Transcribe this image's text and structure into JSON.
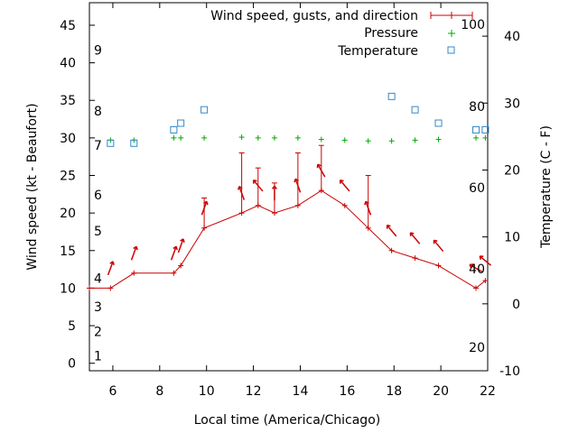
{
  "chart_data": {
    "type": "line",
    "xlabel": "Local time (America/Chicago)",
    "ylabel": "Wind speed (kt - Beaufort)",
    "y2label": "Temperature (C - F)",
    "xlim": [
      5,
      22
    ],
    "ylim": [
      -1,
      48
    ],
    "y2lim": [
      -10,
      45
    ],
    "xticks": [
      "6",
      "8",
      "10",
      "12",
      "14",
      "16",
      "18",
      "20",
      "22"
    ],
    "yticks": [
      "0",
      "5",
      "10",
      "15",
      "20",
      "25",
      "30",
      "35",
      "40",
      "45"
    ],
    "y2ticks": [
      "-10",
      "0",
      "10",
      "20",
      "30",
      "40"
    ],
    "beaufort_labels": [
      {
        "label": "1",
        "y": 1.0
      },
      {
        "label": "2",
        "y": 4.2
      },
      {
        "label": "3",
        "y": 7.5
      },
      {
        "label": "4",
        "y": 11.3
      },
      {
        "label": "5",
        "y": 17.6
      },
      {
        "label": "6",
        "y": 22.4
      },
      {
        "label": "7",
        "y": 29.0
      },
      {
        "label": "8",
        "y": 33.6
      },
      {
        "label": "9",
        "y": 41.7
      }
    ],
    "fahrenheit_labels": [
      {
        "label": "20",
        "y": 2.1
      },
      {
        "label": "40",
        "y": 12.6
      },
      {
        "label": "60",
        "y": 23.4
      },
      {
        "label": "80",
        "y": 34.2
      },
      {
        "label": "100",
        "y": 45.1
      }
    ],
    "series": [
      {
        "name": "Wind speed, gusts, and direction",
        "color": "#cc0000",
        "x": [
          5.0,
          5.9,
          6.9,
          8.6,
          8.9,
          9.9,
          11.5,
          12.2,
          12.9,
          13.9,
          14.9,
          15.9,
          16.9,
          17.9,
          18.9,
          19.9,
          21.5,
          21.9
        ],
        "y": [
          10,
          10,
          12,
          12,
          13,
          18,
          20,
          21,
          20,
          21,
          23,
          21,
          18,
          15,
          14,
          13,
          10,
          11
        ],
        "gusts": [
          null,
          null,
          null,
          null,
          null,
          22,
          28,
          26,
          24,
          28,
          29,
          null,
          25,
          null,
          null,
          null,
          null,
          null
        ],
        "direction_deg": [
          null,
          20,
          20,
          20,
          20,
          20,
          340,
          320,
          0,
          340,
          330,
          320,
          340,
          320,
          320,
          320,
          300,
          310
        ]
      },
      {
        "name": "Pressure",
        "color": "#00aa00",
        "x": [
          5.9,
          6.9,
          8.6,
          8.9,
          9.9,
          11.5,
          12.2,
          12.9,
          13.9,
          14.9,
          15.9,
          16.9,
          17.9,
          18.9,
          19.9,
          21.5,
          21.9
        ],
        "y": [
          29.7,
          29.7,
          30.0,
          30.0,
          30.0,
          30.1,
          30.0,
          30.0,
          30.0,
          29.8,
          29.7,
          29.6,
          29.6,
          29.7,
          29.8,
          30.0,
          30.0
        ]
      },
      {
        "name": "Temperature",
        "color": "#3388cc",
        "x": [
          5.9,
          6.9,
          8.6,
          8.9,
          9.9,
          17.9,
          18.9,
          19.9,
          21.5,
          21.9
        ],
        "y": [
          24,
          24,
          26,
          27,
          29,
          31,
          29,
          27,
          26,
          26
        ]
      }
    ]
  }
}
